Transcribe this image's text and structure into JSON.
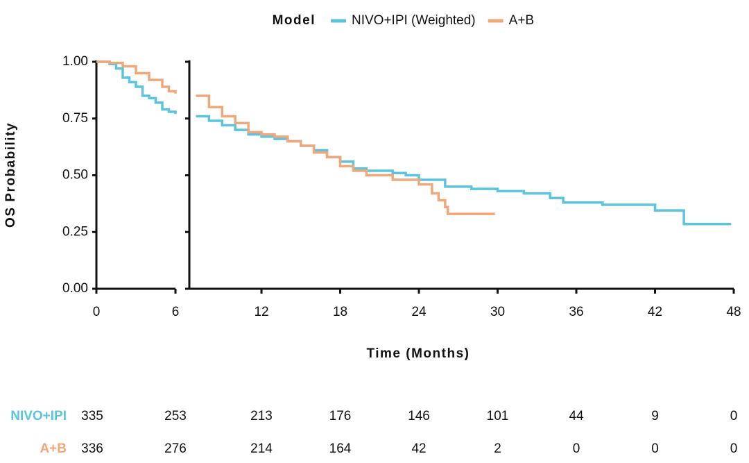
{
  "chart_data": {
    "type": "step",
    "legend_title": "Model",
    "xlabel": "Time (Months)",
    "ylabel": "OS Probability",
    "ylim": [
      0,
      1
    ],
    "yticks": [
      {
        "value": 0,
        "label": "0.00"
      },
      {
        "value": 0.25,
        "label": "0.25"
      },
      {
        "value": 0.5,
        "label": "0.50"
      },
      {
        "value": 0.75,
        "label": "0.75"
      },
      {
        "value": 1,
        "label": "1.00"
      }
    ],
    "panels": [
      {
        "xlim": [
          0,
          6
        ],
        "xticks": [
          0,
          6
        ]
      },
      {
        "xlim": [
          6.5,
          48
        ],
        "xticks": [
          12,
          18,
          24,
          30,
          36,
          42,
          48
        ]
      }
    ],
    "series": [
      {
        "name": "NIVO+IPI (Weighted)",
        "color": "#5bc4de",
        "x": [
          0,
          1,
          1.5,
          2,
          2.5,
          3,
          3.5,
          4,
          4.5,
          5,
          5.5,
          6,
          7,
          8,
          9,
          10,
          11,
          12,
          13,
          14,
          15,
          16,
          17,
          18,
          19,
          20,
          22,
          23,
          24,
          26,
          28,
          30,
          32,
          34,
          35,
          38,
          42,
          44.2,
          47.8
        ],
        "values": [
          1.0,
          0.99,
          0.97,
          0.93,
          0.91,
          0.89,
          0.85,
          0.84,
          0.82,
          0.79,
          0.78,
          0.77,
          0.76,
          0.74,
          0.72,
          0.7,
          0.68,
          0.67,
          0.66,
          0.65,
          0.63,
          0.61,
          0.58,
          0.56,
          0.53,
          0.52,
          0.51,
          0.5,
          0.48,
          0.45,
          0.44,
          0.43,
          0.42,
          0.4,
          0.38,
          0.37,
          0.345,
          0.285,
          0.285
        ]
      },
      {
        "name": "A+B",
        "color": "#f0a87a",
        "x": [
          0,
          1,
          2,
          3,
          4,
          5,
          5.5,
          6,
          7,
          8,
          9,
          10,
          11,
          12,
          13,
          14,
          15,
          16,
          17,
          18,
          19,
          20,
          22,
          24,
          25,
          25.5,
          26,
          26.2,
          29.8
        ],
        "values": [
          1.0,
          0.995,
          0.98,
          0.95,
          0.92,
          0.89,
          0.87,
          0.86,
          0.85,
          0.8,
          0.76,
          0.73,
          0.69,
          0.68,
          0.67,
          0.65,
          0.63,
          0.6,
          0.58,
          0.54,
          0.52,
          0.5,
          0.48,
          0.46,
          0.42,
          0.39,
          0.36,
          0.33,
          0.33
        ]
      }
    ],
    "risk_table": [
      {
        "label": "NIVO+IPI",
        "color": "#5bc4de",
        "counts": [
          335,
          253,
          213,
          176,
          146,
          101,
          44,
          9,
          0
        ]
      },
      {
        "label": "A+B",
        "color": "#f0a87a",
        "counts": [
          336,
          276,
          214,
          164,
          42,
          2,
          0,
          0,
          0
        ]
      }
    ]
  }
}
